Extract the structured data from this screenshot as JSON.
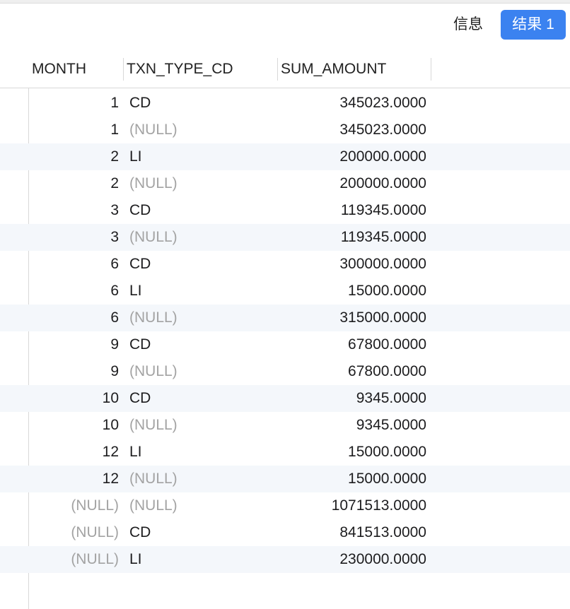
{
  "toolbar": {
    "info_label": "信息",
    "result_label": "结果 1",
    "accent_color": "#3b82f0"
  },
  "grid": {
    "columns": [
      "MONTH",
      "TXN_TYPE_CD",
      "SUM_AMOUNT"
    ],
    "rows": [
      {
        "month": "1",
        "type": "CD",
        "sum": "345023.0000"
      },
      {
        "month": "1",
        "type": "(NULL)",
        "sum": "345023.0000"
      },
      {
        "month": "2",
        "type": "LI",
        "sum": "200000.0000"
      },
      {
        "month": "2",
        "type": "(NULL)",
        "sum": "200000.0000"
      },
      {
        "month": "3",
        "type": "CD",
        "sum": "119345.0000"
      },
      {
        "month": "3",
        "type": "(NULL)",
        "sum": "119345.0000"
      },
      {
        "month": "6",
        "type": "CD",
        "sum": "300000.0000"
      },
      {
        "month": "6",
        "type": "LI",
        "sum": "15000.0000"
      },
      {
        "month": "6",
        "type": "(NULL)",
        "sum": "315000.0000"
      },
      {
        "month": "9",
        "type": "CD",
        "sum": "67800.0000"
      },
      {
        "month": "9",
        "type": "(NULL)",
        "sum": "67800.0000"
      },
      {
        "month": "10",
        "type": "CD",
        "sum": "9345.0000"
      },
      {
        "month": "10",
        "type": "(NULL)",
        "sum": "9345.0000"
      },
      {
        "month": "12",
        "type": "LI",
        "sum": "15000.0000"
      },
      {
        "month": "12",
        "type": "(NULL)",
        "sum": "15000.0000"
      },
      {
        "month": "(NULL)",
        "type": "(NULL)",
        "sum": "1071513.0000"
      },
      {
        "month": "(NULL)",
        "type": "CD",
        "sum": "841513.0000"
      },
      {
        "month": "(NULL)",
        "type": "LI",
        "sum": "230000.0000"
      }
    ]
  }
}
